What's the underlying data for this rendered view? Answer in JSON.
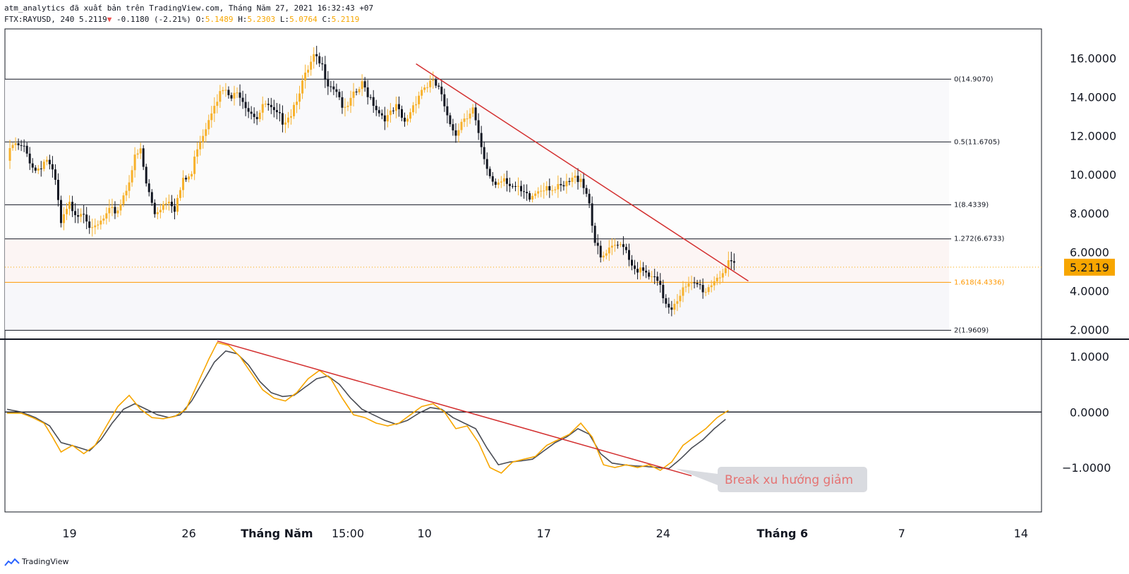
{
  "header": {
    "line1": "atm_analytics đã xuất bản trên TradingView.com, Tháng Năm 27, 2021 16:32:43 +07",
    "symbol": "FTX:RAYUSD, 240",
    "last": "5.2119",
    "change": "-0.1180 (-2.21%)",
    "o_label": "O:",
    "o": "5.1489",
    "h_label": "H:",
    "h": "5.2303",
    "l_label": "L:",
    "l": "5.0764",
    "c_label": "C:",
    "c": "5.2119"
  },
  "watermark": "TradingView",
  "colors": {
    "up": "#f7b12b",
    "down": "#131722",
    "trend": "#d32f2f",
    "fib": "#131722",
    "fib_hi": "#ff9800",
    "price_tag": "#f7a600",
    "osc_fast": "#f7a600",
    "osc_slow": "#4a4d55"
  },
  "chart_data": [
    {
      "type": "candlestick",
      "symbol": "FTX:RAYUSD",
      "interval": "240",
      "y_ticks": [
        "16.0000",
        "14.0000",
        "12.0000",
        "10.0000",
        "8.0000",
        "6.0000",
        "4.0000",
        "2.0000"
      ],
      "ylim": [
        1.5,
        17.5
      ],
      "current_price": {
        "value": 5.2119,
        "label": "5.2119"
      },
      "x_ticks": [
        {
          "label": "19",
          "bold": false,
          "i": 22
        },
        {
          "label": "26",
          "bold": false,
          "i": 64
        },
        {
          "label": "Tháng Năm",
          "bold": true,
          "i": 95
        },
        {
          "label": "15:00",
          "bold": false,
          "i": 120
        },
        {
          "label": "10",
          "bold": false,
          "i": 147
        },
        {
          "label": "17",
          "bold": false,
          "i": 189
        },
        {
          "label": "24",
          "bold": false,
          "i": 231
        },
        {
          "label": "Tháng 6",
          "bold": true,
          "i": 273
        },
        {
          "label": "7",
          "bold": false,
          "i": 315
        },
        {
          "label": "14",
          "bold": false,
          "i": 357
        }
      ],
      "fibonacci": [
        {
          "label": "0(14.9070)",
          "value": 14.907
        },
        {
          "label": "0.5(11.6705)",
          "value": 11.6705
        },
        {
          "label": "1(8.4339)",
          "value": 8.4339
        },
        {
          "label": "1.272(6.6733)",
          "value": 6.6733
        },
        {
          "label": "1.618(4.4336)",
          "value": 4.4336,
          "highlight": true
        },
        {
          "label": "2(1.9609)",
          "value": 1.9609
        }
      ],
      "trendline": [
        {
          "i": 144,
          "v": 15.7
        },
        {
          "i": 261,
          "v": 4.5
        }
      ],
      "series": [
        {
          "name": "",
          "anchors": [
            [
              0,
              10.7
            ],
            [
              2,
              11.5
            ],
            [
              6,
              11.3
            ],
            [
              10,
              10.2
            ],
            [
              14,
              10.8
            ],
            [
              17,
              9.6
            ],
            [
              19,
              7.4
            ],
            [
              22,
              8.4
            ],
            [
              25,
              8.0
            ],
            [
              27,
              8.2
            ],
            [
              30,
              7.0
            ],
            [
              33,
              7.5
            ],
            [
              36,
              8.0
            ],
            [
              39,
              8.2
            ],
            [
              42,
              9.3
            ],
            [
              45,
              10.8
            ],
            [
              47,
              11.2
            ],
            [
              49,
              9.5
            ],
            [
              52,
              8.0
            ],
            [
              55,
              8.5
            ],
            [
              57,
              8.8
            ],
            [
              59,
              8.3
            ],
            [
              62,
              9.6
            ],
            [
              65,
              10.0
            ],
            [
              67,
              11.5
            ],
            [
              70,
              12.5
            ],
            [
              73,
              13.8
            ],
            [
              76,
              14.3
            ],
            [
              79,
              13.9
            ],
            [
              82,
              14.2
            ],
            [
              85,
              13.4
            ],
            [
              88,
              13.0
            ],
            [
              91,
              13.6
            ],
            [
              94,
              13.1
            ],
            [
              97,
              12.8
            ],
            [
              100,
              13.2
            ],
            [
              103,
              14.4
            ],
            [
              106,
              15.3
            ],
            [
              108,
              16.0
            ],
            [
              111,
              15.5
            ],
            [
              113,
              14.8
            ],
            [
              116,
              14.4
            ],
            [
              119,
              13.2
            ],
            [
              122,
              14.0
            ],
            [
              125,
              14.6
            ],
            [
              128,
              14.0
            ],
            [
              131,
              13.2
            ],
            [
              134,
              12.9
            ],
            [
              137,
              13.4
            ],
            [
              140,
              12.6
            ],
            [
              143,
              13.6
            ],
            [
              146,
              14.4
            ],
            [
              149,
              14.7
            ],
            [
              152,
              14.5
            ],
            [
              155,
              12.8
            ],
            [
              158,
              12.2
            ],
            [
              161,
              13.0
            ],
            [
              164,
              13.4
            ],
            [
              167,
              11.2
            ],
            [
              169,
              10.1
            ],
            [
              172,
              9.5
            ],
            [
              175,
              9.9
            ],
            [
              178,
              9.4
            ],
            [
              181,
              9.0
            ],
            [
              184,
              8.7
            ],
            [
              187,
              9.2
            ],
            [
              190,
              9.5
            ],
            [
              193,
              9.2
            ],
            [
              196,
              9.3
            ],
            [
              199,
              9.7
            ],
            [
              202,
              9.9
            ],
            [
              205,
              8.6
            ],
            [
              207,
              6.5
            ],
            [
              209,
              5.6
            ],
            [
              212,
              6.0
            ],
            [
              215,
              6.3
            ],
            [
              217,
              6.5
            ],
            [
              220,
              5.4
            ],
            [
              223,
              5.0
            ],
            [
              226,
              4.7
            ],
            [
              229,
              4.4
            ],
            [
              232,
              3.4
            ],
            [
              234,
              3.2
            ],
            [
              237,
              3.9
            ],
            [
              240,
              4.2
            ],
            [
              243,
              4.3
            ],
            [
              246,
              4.0
            ],
            [
              249,
              4.6
            ],
            [
              252,
              5.0
            ],
            [
              254,
              5.3
            ],
            [
              256,
              5.21
            ]
          ]
        }
      ]
    },
    {
      "type": "line",
      "name": "oscillator",
      "y_ticks": [
        "1.0000",
        "0.0000",
        "−1.0000"
      ],
      "ylim": [
        -1.8,
        1.3
      ],
      "zero_line": 0,
      "trendline": [
        {
          "i": 74,
          "v": 1.28
        },
        {
          "i": 241,
          "v": -1.15
        }
      ],
      "annotation": {
        "text": "Break xu hướng giảm",
        "i": 234,
        "v": -1.02
      },
      "series": [
        {
          "name": "",
          "anchors": [
            [
              0,
              -0.02
            ],
            [
              5,
              -0.02
            ],
            [
              9,
              -0.1
            ],
            [
              13,
              -0.2
            ],
            [
              16,
              -0.45
            ],
            [
              19,
              -0.72
            ],
            [
              23,
              -0.6
            ],
            [
              27,
              -0.75
            ],
            [
              31,
              -0.6
            ],
            [
              35,
              -0.25
            ],
            [
              39,
              0.1
            ],
            [
              43,
              0.3
            ],
            [
              47,
              0.05
            ],
            [
              51,
              -0.1
            ],
            [
              55,
              -0.12
            ],
            [
              59,
              -0.08
            ],
            [
              63,
              0.05
            ],
            [
              67,
              0.5
            ],
            [
              71,
              0.95
            ],
            [
              74,
              1.25
            ],
            [
              78,
              1.2
            ],
            [
              82,
              1.0
            ],
            [
              86,
              0.7
            ],
            [
              90,
              0.4
            ],
            [
              94,
              0.25
            ],
            [
              98,
              0.2
            ],
            [
              102,
              0.35
            ],
            [
              106,
              0.6
            ],
            [
              110,
              0.75
            ],
            [
              114,
              0.6
            ],
            [
              118,
              0.25
            ],
            [
              122,
              -0.05
            ],
            [
              126,
              -0.1
            ],
            [
              130,
              -0.2
            ],
            [
              134,
              -0.25
            ],
            [
              138,
              -0.2
            ],
            [
              142,
              -0.05
            ],
            [
              146,
              0.1
            ],
            [
              150,
              0.15
            ],
            [
              154,
              0.0
            ],
            [
              158,
              -0.3
            ],
            [
              162,
              -0.25
            ],
            [
              166,
              -0.55
            ],
            [
              170,
              -1.0
            ],
            [
              174,
              -1.1
            ],
            [
              178,
              -0.9
            ],
            [
              182,
              -0.85
            ],
            [
              186,
              -0.8
            ],
            [
              190,
              -0.6
            ],
            [
              194,
              -0.5
            ],
            [
              198,
              -0.4
            ],
            [
              202,
              -0.2
            ],
            [
              206,
              -0.45
            ],
            [
              210,
              -0.95
            ],
            [
              214,
              -1.0
            ],
            [
              218,
              -0.95
            ],
            [
              222,
              -1.0
            ],
            [
              226,
              -0.95
            ],
            [
              230,
              -1.05
            ],
            [
              234,
              -0.9
            ],
            [
              238,
              -0.6
            ],
            [
              242,
              -0.45
            ],
            [
              246,
              -0.3
            ],
            [
              250,
              -0.1
            ],
            [
              254,
              0.03
            ]
          ]
        },
        {
          "name": "",
          "anchors": [
            [
              0,
              0.05
            ],
            [
              5,
              0.0
            ],
            [
              10,
              -0.1
            ],
            [
              15,
              -0.25
            ],
            [
              19,
              -0.55
            ],
            [
              24,
              -0.62
            ],
            [
              29,
              -0.7
            ],
            [
              33,
              -0.5
            ],
            [
              37,
              -0.2
            ],
            [
              41,
              0.05
            ],
            [
              45,
              0.15
            ],
            [
              49,
              0.05
            ],
            [
              53,
              -0.05
            ],
            [
              57,
              -0.1
            ],
            [
              61,
              -0.05
            ],
            [
              65,
              0.2
            ],
            [
              69,
              0.55
            ],
            [
              73,
              0.9
            ],
            [
              77,
              1.1
            ],
            [
              81,
              1.05
            ],
            [
              85,
              0.85
            ],
            [
              89,
              0.55
            ],
            [
              93,
              0.35
            ],
            [
              97,
              0.28
            ],
            [
              101,
              0.3
            ],
            [
              105,
              0.45
            ],
            [
              109,
              0.6
            ],
            [
              113,
              0.65
            ],
            [
              117,
              0.5
            ],
            [
              121,
              0.25
            ],
            [
              125,
              0.05
            ],
            [
              129,
              -0.05
            ],
            [
              133,
              -0.15
            ],
            [
              137,
              -0.22
            ],
            [
              141,
              -0.15
            ],
            [
              145,
              -0.02
            ],
            [
              149,
              0.08
            ],
            [
              153,
              0.05
            ],
            [
              157,
              -0.1
            ],
            [
              161,
              -0.2
            ],
            [
              165,
              -0.3
            ],
            [
              169,
              -0.65
            ],
            [
              173,
              -0.95
            ],
            [
              177,
              -0.9
            ],
            [
              181,
              -0.88
            ],
            [
              185,
              -0.85
            ],
            [
              189,
              -0.7
            ],
            [
              193,
              -0.55
            ],
            [
              197,
              -0.45
            ],
            [
              201,
              -0.3
            ],
            [
              205,
              -0.4
            ],
            [
              209,
              -0.75
            ],
            [
              213,
              -0.92
            ],
            [
              217,
              -0.95
            ],
            [
              221,
              -0.97
            ],
            [
              225,
              -0.98
            ],
            [
              229,
              -1.0
            ],
            [
              233,
              -1.02
            ],
            [
              237,
              -0.85
            ],
            [
              241,
              -0.65
            ],
            [
              245,
              -0.5
            ],
            [
              249,
              -0.3
            ],
            [
              253,
              -0.13
            ]
          ]
        }
      ]
    }
  ]
}
